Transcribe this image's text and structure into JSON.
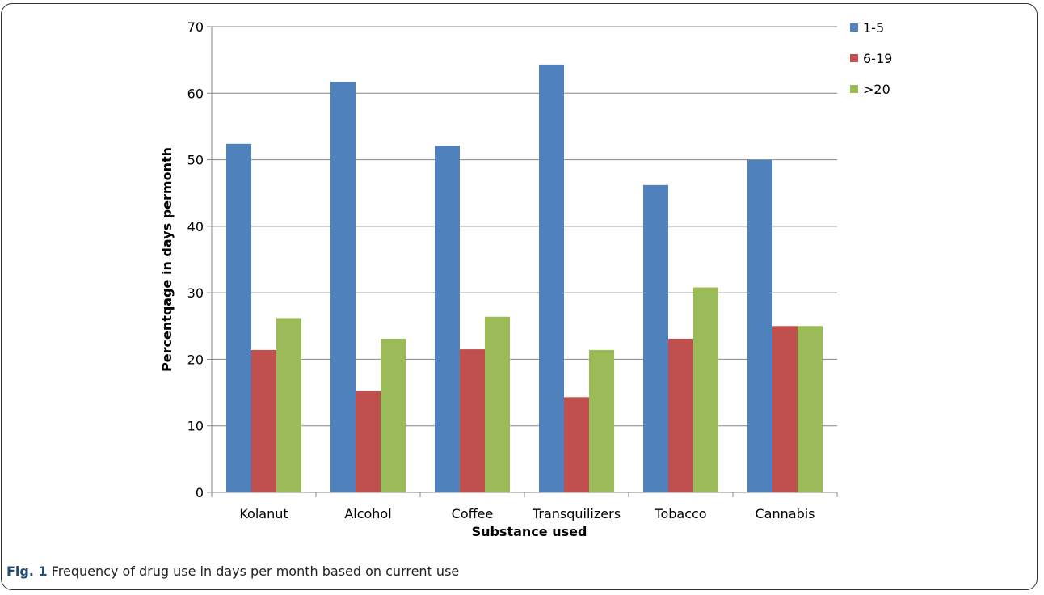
{
  "caption": {
    "label": "Fig. 1",
    "text": "Frequency of drug use in days per month based on current use"
  },
  "colors": {
    "series": [
      "#4f81bd",
      "#c0504d",
      "#9bbb59"
    ],
    "grid": "#868686",
    "axis": "#868686"
  },
  "chart_data": {
    "type": "bar",
    "title": "",
    "xlabel": "Substance used",
    "ylabel": "Percentqage in days permonth",
    "ylim": [
      0,
      70
    ],
    "yticks": [
      0,
      10,
      20,
      30,
      40,
      50,
      60,
      70
    ],
    "grid": true,
    "legend": "right",
    "categories": [
      "Kolanut",
      "Alcohol",
      "Coffee",
      "Transquilizers",
      "Tobacco",
      "Cannabis"
    ],
    "series": [
      {
        "name": "1-5",
        "values": [
          52.4,
          61.7,
          52.1,
          64.3,
          46.2,
          50.0
        ]
      },
      {
        "name": "6-19",
        "values": [
          21.4,
          15.2,
          21.5,
          14.3,
          23.1,
          25.0
        ]
      },
      {
        "name": ">20",
        "values": [
          26.2,
          23.1,
          26.4,
          21.4,
          30.8,
          25.0
        ]
      }
    ]
  }
}
